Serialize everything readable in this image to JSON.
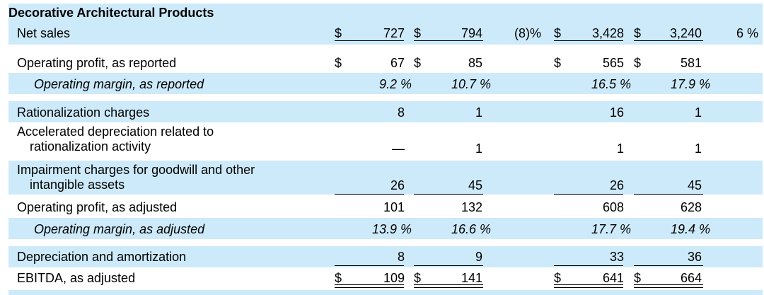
{
  "section_title": "Decorative Architectural Products",
  "colors": {
    "band": "#cdeafa",
    "text": "#000000"
  },
  "rows": {
    "net_sales": {
      "label": "Net sales",
      "c1": "727",
      "c2": "794",
      "chg1": "(8)%",
      "c3": "3,428",
      "c4": "3,240",
      "chg2": "6 %"
    },
    "op_profit_reported": {
      "label": "Operating profit, as reported",
      "c1": "67",
      "c2": "85",
      "c3": "565",
      "c4": "581"
    },
    "op_margin_reported": {
      "label": "Operating margin, as reported",
      "c1": "9.2 %",
      "c2": "10.7 %",
      "c3": "16.5 %",
      "c4": "17.9 %"
    },
    "rationalization": {
      "label": "Rationalization charges",
      "c1": "8",
      "c2": "1",
      "c3": "16",
      "c4": "1"
    },
    "accel_depreciation": {
      "label_line1": "Accelerated depreciation related to",
      "label_line2": "rationalization activity",
      "c1": "—",
      "c2": "1",
      "c3": "1",
      "c4": "1"
    },
    "impairment": {
      "label_line1": "Impairment charges for goodwill and other",
      "label_line2": "intangible assets",
      "c1": "26",
      "c2": "45",
      "c3": "26",
      "c4": "45"
    },
    "op_profit_adjusted": {
      "label": "Operating profit, as adjusted",
      "c1": "101",
      "c2": "132",
      "c3": "608",
      "c4": "628"
    },
    "op_margin_adjusted": {
      "label": "Operating margin, as adjusted",
      "c1": "13.9 %",
      "c2": "16.6 %",
      "c3": "17.7 %",
      "c4": "19.4 %"
    },
    "dep_amort": {
      "label": "Depreciation and amortization",
      "c1": "8",
      "c2": "9",
      "c3": "33",
      "c4": "36"
    },
    "ebitda": {
      "label": "EBITDA, as adjusted",
      "c1": "109",
      "c2": "141",
      "c3": "641",
      "c4": "664"
    }
  },
  "currency_symbol": "$"
}
